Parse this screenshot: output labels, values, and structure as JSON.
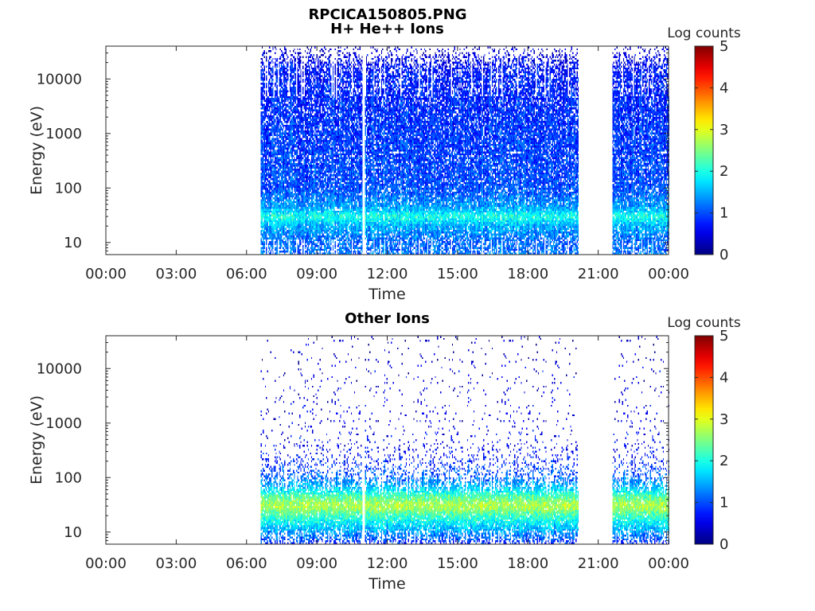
{
  "figure": {
    "title": "RPCICA150805.PNG"
  },
  "chart_data": [
    {
      "type": "heatmap",
      "title": "H+ He++ Ions",
      "xlabel": "Time",
      "ylabel": "Energy (eV)",
      "yscale": "log",
      "ylim": [
        6,
        40000
      ],
      "xlim_hours": [
        0,
        24
      ],
      "x_tick_labels": [
        "00:00",
        "03:00",
        "06:00",
        "09:00",
        "12:00",
        "15:00",
        "18:00",
        "21:00",
        "00:00"
      ],
      "y_ticks": [
        10,
        100,
        1000,
        10000
      ],
      "y_tick_labels": [
        "10",
        "100",
        "1000",
        "10000"
      ],
      "colorbar": {
        "label": "Log counts",
        "range": [
          0,
          5
        ],
        "tick_labels": [
          "0",
          "1",
          "2",
          "3",
          "4",
          "5"
        ],
        "colormap": "jet"
      },
      "data_intervals_hours": [
        [
          6.6,
          10.95
        ],
        [
          11.05,
          20.15
        ],
        [
          21.6,
          24.0
        ]
      ],
      "profile": {
        "band_energy_eV": [
          6,
          10,
          20,
          30,
          45,
          100,
          1000,
          5000,
          15000,
          40000
        ],
        "log_counts": [
          1.2,
          1.1,
          1.5,
          2.0,
          1.4,
          1.0,
          0.9,
          0.8,
          0.7,
          0.3
        ],
        "coverage": [
          0.7,
          0.75,
          0.95,
          0.95,
          0.9,
          0.85,
          0.85,
          0.8,
          0.7,
          0.08
        ]
      },
      "grid": false
    },
    {
      "type": "heatmap",
      "title": "Other Ions",
      "xlabel": "Time",
      "ylabel": "Energy (eV)",
      "yscale": "log",
      "ylim": [
        6,
        40000
      ],
      "xlim_hours": [
        0,
        24
      ],
      "x_tick_labels": [
        "00:00",
        "03:00",
        "06:00",
        "09:00",
        "12:00",
        "15:00",
        "18:00",
        "21:00",
        "00:00"
      ],
      "y_ticks": [
        10,
        100,
        1000,
        10000
      ],
      "y_tick_labels": [
        "10",
        "100",
        "1000",
        "10000"
      ],
      "colorbar": {
        "label": "Log counts",
        "range": [
          0,
          5
        ],
        "tick_labels": [
          "0",
          "1",
          "2",
          "3",
          "4",
          "5"
        ],
        "colormap": "jet"
      },
      "data_intervals_hours": [
        [
          6.6,
          10.95
        ],
        [
          11.05,
          20.15
        ],
        [
          21.6,
          24.0
        ]
      ],
      "profile": {
        "band_energy_eV": [
          6,
          12,
          20,
          30,
          45,
          70,
          120,
          300,
          1000,
          10000,
          40000
        ],
        "log_counts": [
          0.8,
          1.6,
          2.2,
          2.8,
          2.3,
          1.5,
          1.0,
          0.6,
          0.5,
          0.4,
          0.3
        ],
        "coverage": [
          0.45,
          0.9,
          0.95,
          0.95,
          0.95,
          0.7,
          0.35,
          0.12,
          0.05,
          0.03,
          0.02
        ]
      },
      "grid": false
    }
  ]
}
